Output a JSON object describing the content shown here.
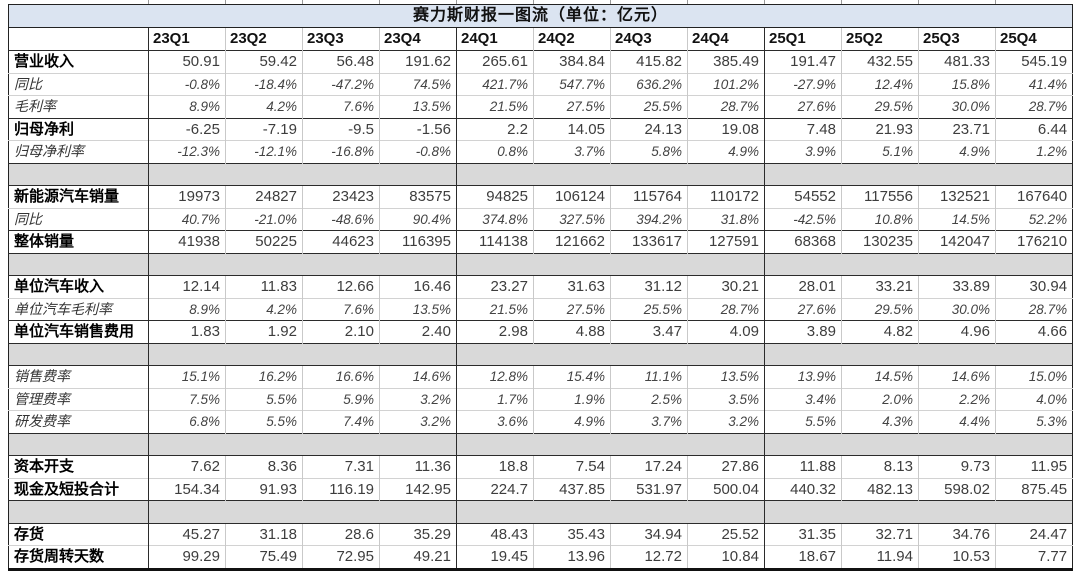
{
  "title": "赛力斯财报一图流（单位：亿元）",
  "colors": {
    "title_bg": "#dbe4f1",
    "separator_bg": "#d9d9d9",
    "grid_light": "#c9c9c9",
    "grid_dark": "#2b2b2b",
    "number_text": "#3d3d3d",
    "label_text": "#000000"
  },
  "chart_data": {
    "type": "table",
    "title": "赛力斯财报一图流（单位：亿元）",
    "columns": [
      "23Q1",
      "23Q2",
      "23Q3",
      "23Q4",
      "24Q1",
      "24Q2",
      "24Q3",
      "24Q4",
      "25Q1",
      "25Q2",
      "25Q3",
      "25Q4"
    ],
    "rows": [
      {
        "label": "营业收入",
        "style": "bold",
        "top": "dark",
        "values": [
          "50.91",
          "59.42",
          "56.48",
          "191.62",
          "265.61",
          "384.84",
          "415.82",
          "385.49",
          "191.47",
          "432.55",
          "481.33",
          "545.19"
        ]
      },
      {
        "label": "同比",
        "style": "italic",
        "top": "light",
        "values": [
          "-0.8%",
          "-18.4%",
          "-47.2%",
          "74.5%",
          "421.7%",
          "547.7%",
          "636.2%",
          "101.2%",
          "-27.9%",
          "12.4%",
          "15.8%",
          "41.4%"
        ]
      },
      {
        "label": "毛利率",
        "style": "italic",
        "top": "light",
        "values": [
          "8.9%",
          "4.2%",
          "7.6%",
          "13.5%",
          "21.5%",
          "27.5%",
          "25.5%",
          "28.7%",
          "27.6%",
          "29.5%",
          "30.0%",
          "28.7%"
        ]
      },
      {
        "label": "归母净利",
        "style": "bold",
        "top": "dark",
        "values": [
          "-6.25",
          "-7.19",
          "-9.5",
          "-1.56",
          "2.2",
          "14.05",
          "24.13",
          "19.08",
          "7.48",
          "21.93",
          "23.71",
          "6.44"
        ]
      },
      {
        "label": "归母净利率",
        "style": "italic",
        "top": "light",
        "values": [
          "-12.3%",
          "-12.1%",
          "-16.8%",
          "-0.8%",
          "0.8%",
          "3.7%",
          "5.8%",
          "4.9%",
          "3.9%",
          "5.1%",
          "4.9%",
          "1.2%"
        ]
      },
      {
        "type": "separator"
      },
      {
        "label": "新能源汽车销量",
        "style": "bold",
        "top": "dark",
        "values": [
          "19973",
          "24827",
          "23423",
          "83575",
          "94825",
          "106124",
          "115764",
          "110172",
          "54552",
          "117556",
          "132521",
          "167640"
        ]
      },
      {
        "label": "同比",
        "style": "italic",
        "top": "light",
        "values": [
          "40.7%",
          "-21.0%",
          "-48.6%",
          "90.4%",
          "374.8%",
          "327.5%",
          "394.2%",
          "31.8%",
          "-42.5%",
          "10.8%",
          "14.5%",
          "52.2%"
        ]
      },
      {
        "label": "整体销量",
        "style": "bold",
        "top": "dark",
        "values": [
          "41938",
          "50225",
          "44623",
          "116395",
          "114138",
          "121662",
          "133617",
          "127591",
          "68368",
          "130235",
          "142047",
          "176210"
        ]
      },
      {
        "type": "separator"
      },
      {
        "label": "单位汽车收入",
        "style": "bold",
        "top": "dark",
        "values": [
          "12.14",
          "11.83",
          "12.66",
          "16.46",
          "23.27",
          "31.63",
          "31.12",
          "30.21",
          "28.01",
          "33.21",
          "33.89",
          "30.94"
        ]
      },
      {
        "label": "单位汽车毛利率",
        "style": "italic",
        "top": "light",
        "values": [
          "8.9%",
          "4.2%",
          "7.6%",
          "13.5%",
          "21.5%",
          "27.5%",
          "25.5%",
          "28.7%",
          "27.6%",
          "29.5%",
          "30.0%",
          "28.7%"
        ]
      },
      {
        "label": "单位汽车销售费用",
        "style": "bold",
        "top": "dark",
        "values": [
          "1.83",
          "1.92",
          "2.10",
          "2.40",
          "2.98",
          "4.88",
          "3.47",
          "4.09",
          "3.89",
          "4.82",
          "4.96",
          "4.66"
        ]
      },
      {
        "type": "separator"
      },
      {
        "label": "销售费率",
        "style": "italic",
        "top": "dark",
        "values": [
          "15.1%",
          "16.2%",
          "16.6%",
          "14.6%",
          "12.8%",
          "15.4%",
          "11.1%",
          "13.5%",
          "13.9%",
          "14.5%",
          "14.6%",
          "15.0%"
        ]
      },
      {
        "label": "管理费率",
        "style": "italic",
        "top": "light",
        "values": [
          "7.5%",
          "5.5%",
          "5.9%",
          "3.2%",
          "1.7%",
          "1.9%",
          "2.5%",
          "3.5%",
          "3.4%",
          "2.0%",
          "2.2%",
          "4.0%"
        ]
      },
      {
        "label": "研发费率",
        "style": "italic",
        "top": "light",
        "values": [
          "6.8%",
          "5.5%",
          "7.4%",
          "3.2%",
          "3.6%",
          "4.9%",
          "3.7%",
          "3.2%",
          "5.5%",
          "4.3%",
          "4.4%",
          "5.3%"
        ]
      },
      {
        "type": "separator"
      },
      {
        "label": "资本开支",
        "style": "bold",
        "top": "dark",
        "values": [
          "7.62",
          "8.36",
          "7.31",
          "11.36",
          "18.8",
          "7.54",
          "17.24",
          "27.86",
          "11.88",
          "8.13",
          "9.73",
          "11.95"
        ]
      },
      {
        "label": "现金及短投合计",
        "style": "bold",
        "top": "light",
        "values": [
          "154.34",
          "91.93",
          "116.19",
          "142.95",
          "224.7",
          "437.85",
          "531.97",
          "500.04",
          "440.32",
          "482.13",
          "598.02",
          "875.45"
        ]
      },
      {
        "type": "separator"
      },
      {
        "label": "存货",
        "style": "bold",
        "top": "dark",
        "values": [
          "45.27",
          "31.18",
          "28.6",
          "35.29",
          "48.43",
          "35.43",
          "34.94",
          "25.52",
          "31.35",
          "32.71",
          "34.76",
          "24.47"
        ]
      },
      {
        "label": "存货周转天数",
        "style": "bold",
        "top": "light",
        "values": [
          "99.29",
          "75.49",
          "72.95",
          "49.21",
          "19.45",
          "13.96",
          "12.72",
          "10.84",
          "18.67",
          "11.94",
          "10.53",
          "7.77"
        ]
      }
    ]
  }
}
